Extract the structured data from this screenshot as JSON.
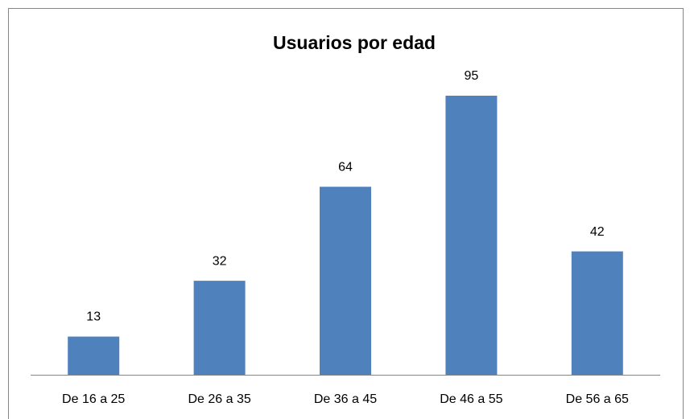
{
  "chart_data": {
    "type": "bar",
    "title": "Usuarios por edad",
    "categories": [
      "De 16 a 25",
      "De 26 a 35",
      "De 36 a 45",
      "De 46 a 55",
      "De 56 a 65"
    ],
    "values": [
      13,
      32,
      64,
      95,
      42
    ],
    "color": "#4f81bd"
  }
}
